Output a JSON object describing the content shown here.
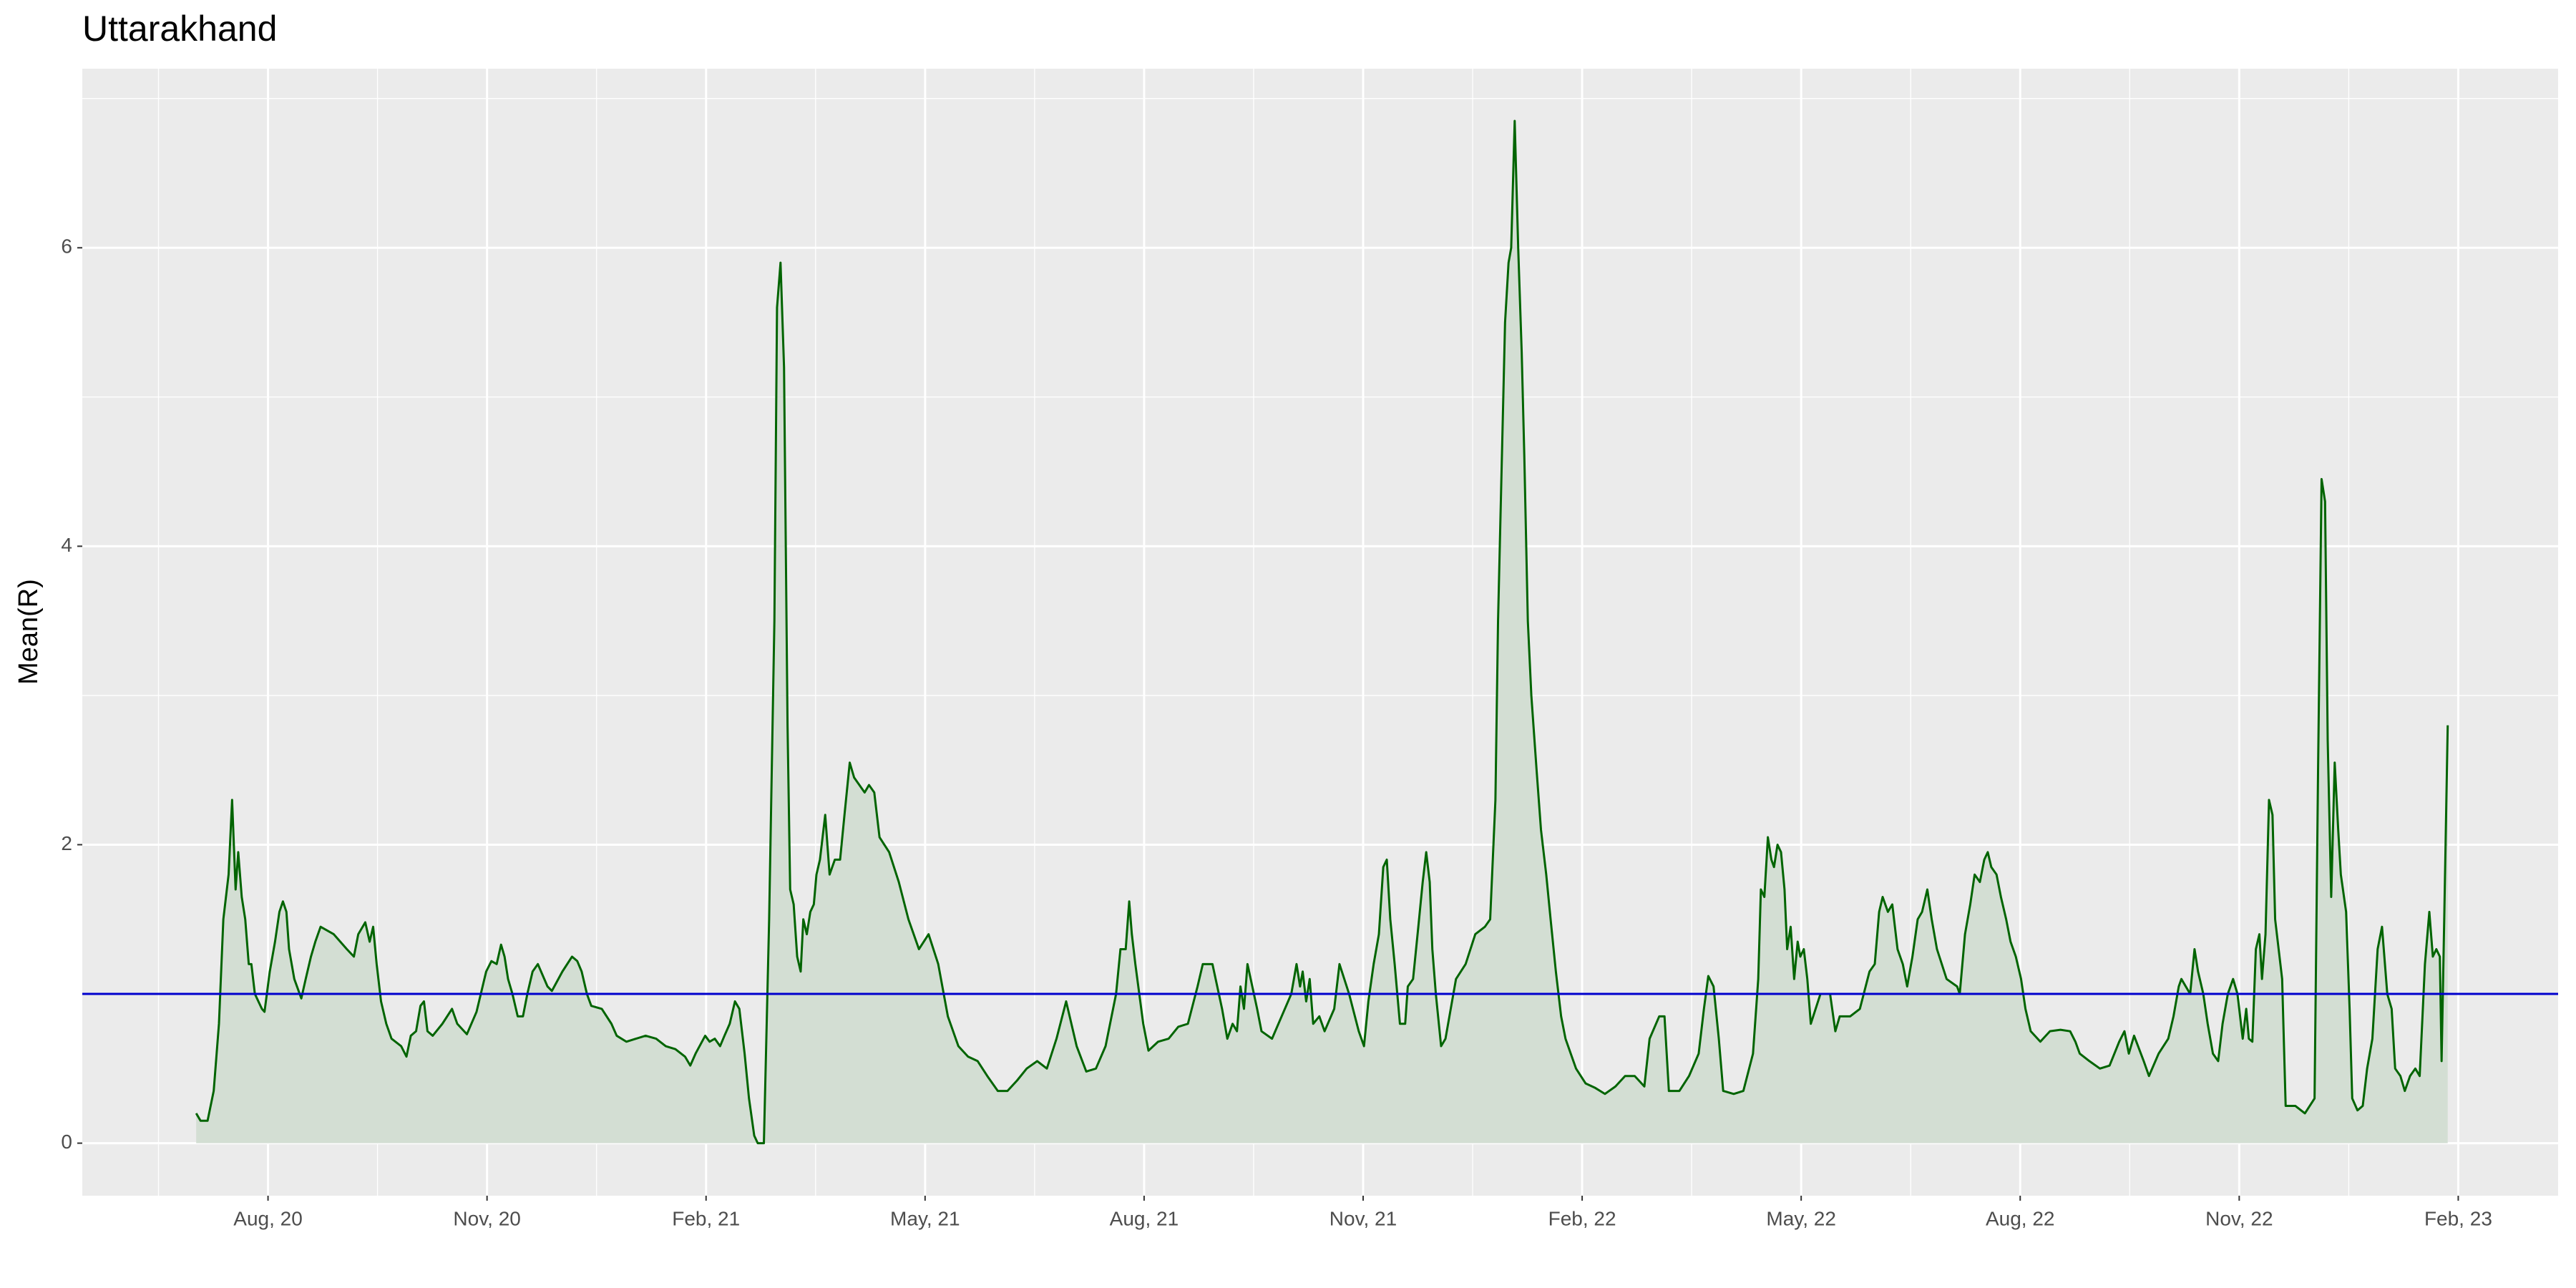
{
  "chart_data": {
    "type": "area-line",
    "title": "Uttarakhand",
    "y_label": "Mean(R)",
    "color": "#006400",
    "fill": "#d3ded3",
    "panel": "#ebebeb",
    "hline": {
      "value": 1,
      "color": "#0000cd"
    },
    "xlim": [
      2020.371,
      2023.197
    ],
    "ylim": [
      -0.352,
      7.2
    ],
    "xticks": [
      {
        "value": 2020.583,
        "label": "Aug, 20"
      },
      {
        "value": 2020.833,
        "label": "Nov, 20"
      },
      {
        "value": 2021.083,
        "label": "Feb, 21"
      },
      {
        "value": 2021.333,
        "label": "May, 21"
      },
      {
        "value": 2021.583,
        "label": "Aug, 21"
      },
      {
        "value": 2021.833,
        "label": "Nov, 21"
      },
      {
        "value": 2022.083,
        "label": "Feb, 22"
      },
      {
        "value": 2022.333,
        "label": "May, 22"
      },
      {
        "value": 2022.583,
        "label": "Aug, 22"
      },
      {
        "value": 2022.833,
        "label": "Nov, 22"
      },
      {
        "value": 2023.083,
        "label": "Feb, 23"
      }
    ],
    "yticks": [
      0,
      2,
      4,
      6
    ],
    "grid": true,
    "x": [
      2020.501,
      2020.506,
      2020.514,
      2020.521,
      2020.527,
      2020.532,
      2020.538,
      2020.542,
      2020.546,
      2020.549,
      2020.553,
      2020.557,
      2020.561,
      2020.564,
      2020.568,
      2020.576,
      2020.579,
      2020.585,
      2020.591,
      2020.596,
      2020.6,
      2020.604,
      2020.607,
      2020.613,
      2020.621,
      2020.626,
      2020.632,
      2020.637,
      2020.643,
      2020.658,
      2020.673,
      2020.681,
      2020.686,
      2020.694,
      2020.699,
      2020.703,
      2020.707,
      2020.712,
      2020.718,
      2020.724,
      2020.735,
      2020.741,
      2020.746,
      2020.752,
      2020.757,
      2020.761,
      2020.765,
      2020.771,
      2020.782,
      2020.793,
      2020.799,
      2020.81,
      2020.821,
      2020.832,
      2020.838,
      2020.844,
      2020.849,
      2020.853,
      2020.857,
      2020.862,
      2020.868,
      2020.874,
      2020.879,
      2020.885,
      2020.891,
      2020.902,
      2020.907,
      2020.919,
      2020.93,
      2020.936,
      2020.941,
      2020.947,
      2020.952,
      2020.964,
      2020.975,
      2020.981,
      2020.992,
      2021.003,
      2021.014,
      2021.026,
      2021.037,
      2021.048,
      2021.059,
      2021.065,
      2021.071,
      2021.082,
      2021.087,
      2021.093,
      2021.099,
      2021.104,
      2021.11,
      2021.116,
      2021.121,
      2021.127,
      2021.132,
      2021.138,
      2021.142,
      2021.149,
      2021.155,
      2021.161,
      2021.164,
      2021.168,
      2021.172,
      2021.176,
      2021.179,
      2021.183,
      2021.187,
      2021.191,
      2021.194,
      2021.198,
      2021.202,
      2021.206,
      2021.209,
      2021.213,
      2021.219,
      2021.224,
      2021.23,
      2021.236,
      2021.241,
      2021.247,
      2021.252,
      2021.264,
      2021.269,
      2021.275,
      2021.281,
      2021.292,
      2021.303,
      2021.314,
      2021.326,
      2021.337,
      2021.348,
      2021.359,
      2021.371,
      2021.382,
      2021.393,
      2021.404,
      2021.416,
      2021.427,
      2021.438,
      2021.449,
      2021.461,
      2021.472,
      2021.483,
      2021.494,
      2021.506,
      2021.517,
      2021.528,
      2021.539,
      2021.551,
      2021.556,
      2021.562,
      2021.566,
      2021.569,
      2021.573,
      2021.582,
      2021.588,
      2021.599,
      2021.611,
      2021.622,
      2021.633,
      2021.644,
      2021.65,
      2021.661,
      2021.672,
      2021.678,
      2021.684,
      2021.689,
      2021.693,
      2021.697,
      2021.701,
      2021.712,
      2021.717,
      2021.729,
      2021.74,
      2021.751,
      2021.757,
      2021.761,
      2021.764,
      2021.768,
      2021.772,
      2021.776,
      2021.783,
      2021.789,
      2021.8,
      2021.806,
      2021.817,
      2021.828,
      2021.834,
      2021.839,
      2021.845,
      2021.851,
      2021.856,
      2021.86,
      2021.864,
      2021.869,
      2021.875,
      2021.881,
      2021.884,
      2021.89,
      2021.896,
      2021.901,
      2021.905,
      2021.909,
      2021.912,
      2021.916,
      2021.922,
      2021.927,
      2021.939,
      2021.95,
      2021.961,
      2021.972,
      2021.978,
      2021.984,
      2021.987,
      2021.991,
      2021.995,
      2021.999,
      2022.002,
      2022.006,
      2022.01,
      2022.014,
      2022.017,
      2022.021,
      2022.025,
      2022.031,
      2022.036,
      2022.042,
      2022.047,
      2022.053,
      2022.059,
      2022.064,
      2022.07,
      2022.076,
      2022.087,
      2022.098,
      2022.109,
      2022.121,
      2022.132,
      2022.143,
      2022.154,
      2022.16,
      2022.171,
      2022.177,
      2022.182,
      2022.194,
      2022.205,
      2022.216,
      2022.222,
      2022.227,
      2022.233,
      2022.239,
      2022.244,
      2022.256,
      2022.267,
      2022.278,
      2022.284,
      2022.287,
      2022.291,
      2022.295,
      2022.299,
      2022.302,
      2022.306,
      2022.31,
      2022.314,
      2022.317,
      2022.321,
      2022.325,
      2022.329,
      2022.332,
      2022.336,
      2022.34,
      2022.344,
      2022.355,
      2022.366,
      2022.372,
      2022.377,
      2022.389,
      2022.4,
      2022.411,
      2022.417,
      2022.422,
      2022.426,
      2022.432,
      2022.437,
      2022.443,
      2022.449,
      2022.454,
      2022.46,
      2022.466,
      2022.471,
      2022.477,
      2022.482,
      2022.488,
      2022.499,
      2022.511,
      2022.514,
      2022.52,
      2022.526,
      2022.531,
      2022.537,
      2022.542,
      2022.546,
      2022.55,
      2022.556,
      2022.561,
      2022.567,
      2022.572,
      2022.578,
      2022.584,
      2022.589,
      2022.595,
      2022.606,
      2022.617,
      2022.629,
      2022.64,
      2022.646,
      2022.651,
      2022.662,
      2022.674,
      2022.685,
      2022.696,
      2022.702,
      2022.707,
      2022.713,
      2022.724,
      2022.73,
      2022.741,
      2022.752,
      2022.758,
      2022.764,
      2022.767,
      2022.777,
      2022.782,
      2022.786,
      2022.792,
      2022.797,
      2022.803,
      2022.809,
      2022.814,
      2022.82,
      2022.826,
      2022.831,
      2022.837,
      2022.841,
      2022.844,
      2022.848,
      2022.852,
      2022.856,
      2022.859,
      2022.863,
      2022.867,
      2022.871,
      2022.874,
      2022.878,
      2022.882,
      2022.886,
      2022.897,
      2022.908,
      2022.919,
      2022.923,
      2022.927,
      2022.931,
      2022.934,
      2022.938,
      2022.942,
      2022.946,
      2022.949,
      2022.955,
      2022.959,
      2022.962,
      2022.968,
      2022.974,
      2022.979,
      2022.985,
      2022.991,
      2022.996,
      2023.002,
      2023.007,
      2023.011,
      2023.017,
      2023.022,
      2023.028,
      2023.034,
      2023.039,
      2023.045,
      2023.05,
      2023.054,
      2023.058,
      2023.062,
      2023.064,
      2023.067,
      2023.071
    ],
    "values": [
      0.2,
      0.15,
      0.15,
      0.35,
      0.8,
      1.5,
      1.8,
      2.3,
      1.7,
      1.95,
      1.65,
      1.5,
      1.2,
      1.2,
      1.0,
      0.9,
      0.88,
      1.15,
      1.35,
      1.55,
      1.62,
      1.55,
      1.3,
      1.1,
      0.97,
      1.1,
      1.25,
      1.35,
      1.45,
      1.4,
      1.3,
      1.25,
      1.4,
      1.48,
      1.35,
      1.45,
      1.2,
      0.95,
      0.8,
      0.7,
      0.65,
      0.58,
      0.72,
      0.75,
      0.92,
      0.95,
      0.75,
      0.72,
      0.8,
      0.9,
      0.8,
      0.73,
      0.88,
      1.15,
      1.22,
      1.2,
      1.33,
      1.25,
      1.1,
      1.0,
      0.85,
      0.85,
      1.0,
      1.15,
      1.2,
      1.05,
      1.02,
      1.15,
      1.25,
      1.22,
      1.15,
      1.0,
      0.92,
      0.9,
      0.8,
      0.72,
      0.68,
      0.7,
      0.72,
      0.7,
      0.65,
      0.63,
      0.58,
      0.52,
      0.6,
      0.72,
      0.68,
      0.7,
      0.65,
      0.72,
      0.8,
      0.95,
      0.9,
      0.6,
      0.3,
      0.05,
      0,
      0,
      1.5,
      3.5,
      5.6,
      5.9,
      5.2,
      2.8,
      1.7,
      1.6,
      1.25,
      1.15,
      1.5,
      1.4,
      1.55,
      1.6,
      1.8,
      1.9,
      2.2,
      1.8,
      1.9,
      1.9,
      2.2,
      2.55,
      2.45,
      2.35,
      2.4,
      2.35,
      2.05,
      1.95,
      1.75,
      1.5,
      1.3,
      1.4,
      1.2,
      0.85,
      0.65,
      0.58,
      0.55,
      0.45,
      0.35,
      0.35,
      0.42,
      0.5,
      0.55,
      0.5,
      0.7,
      0.95,
      0.65,
      0.48,
      0.5,
      0.65,
      1.0,
      1.3,
      1.3,
      1.62,
      1.4,
      1.2,
      0.8,
      0.62,
      0.68,
      0.7,
      0.78,
      0.8,
      1.05,
      1.2,
      1.2,
      0.9,
      0.7,
      0.8,
      0.75,
      1.05,
      0.9,
      1.2,
      0.9,
      0.75,
      0.7,
      0.85,
      1.0,
      1.2,
      1.05,
      1.15,
      0.95,
      1.1,
      0.8,
      0.85,
      0.75,
      0.9,
      1.2,
      1.0,
      0.75,
      0.65,
      0.95,
      1.2,
      1.4,
      1.85,
      1.9,
      1.5,
      1.2,
      0.8,
      0.8,
      1.05,
      1.1,
      1.45,
      1.75,
      1.95,
      1.75,
      1.3,
      1.0,
      0.65,
      0.7,
      1.1,
      1.2,
      1.4,
      1.45,
      1.5,
      2.3,
      3.5,
      4.5,
      5.5,
      5.9,
      6.0,
      6.85,
      6.0,
      5.3,
      4.6,
      3.5,
      3.0,
      2.5,
      2.1,
      1.8,
      1.5,
      1.15,
      0.85,
      0.7,
      0.6,
      0.5,
      0.4,
      0.37,
      0.33,
      0.38,
      0.45,
      0.45,
      0.38,
      0.7,
      0.85,
      0.85,
      0.35,
      0.35,
      0.45,
      0.6,
      0.9,
      1.12,
      1.05,
      0.7,
      0.35,
      0.33,
      0.35,
      0.6,
      1.1,
      1.7,
      1.65,
      2.05,
      1.9,
      1.85,
      2.0,
      1.95,
      1.7,
      1.3,
      1.45,
      1.1,
      1.35,
      1.25,
      1.3,
      1.1,
      0.8,
      1.0,
      1.0,
      0.75,
      0.85,
      0.85,
      0.9,
      1.15,
      1.2,
      1.55,
      1.65,
      1.55,
      1.6,
      1.3,
      1.2,
      1.05,
      1.25,
      1.5,
      1.55,
      1.7,
      1.5,
      1.3,
      1.1,
      1.05,
      1.0,
      1.4,
      1.6,
      1.8,
      1.75,
      1.9,
      1.95,
      1.85,
      1.8,
      1.65,
      1.5,
      1.35,
      1.25,
      1.1,
      0.9,
      0.75,
      0.68,
      0.75,
      0.76,
      0.75,
      0.68,
      0.6,
      0.55,
      0.5,
      0.52,
      0.68,
      0.75,
      0.6,
      0.72,
      0.55,
      0.45,
      0.6,
      0.7,
      0.85,
      1.05,
      1.1,
      1.0,
      1.3,
      1.15,
      1.0,
      0.8,
      0.6,
      0.55,
      0.8,
      1.0,
      1.1,
      1.0,
      0.7,
      0.9,
      0.7,
      0.68,
      1.3,
      1.4,
      1.1,
      1.4,
      2.3,
      2.2,
      1.5,
      1.3,
      1.1,
      0.25,
      0.25,
      0.2,
      0.3,
      2.5,
      4.45,
      4.3,
      2.7,
      1.65,
      2.55,
      2.1,
      1.8,
      1.55,
      0.9,
      0.3,
      0.22,
      0.25,
      0.5,
      0.7,
      1.3,
      1.45,
      1.0,
      0.9,
      0.5,
      0.45,
      0.35,
      0.45,
      0.5,
      0.45,
      1.2,
      1.55,
      1.25,
      1.3,
      1.25,
      0.55,
      1.5,
      2.8
    ]
  }
}
